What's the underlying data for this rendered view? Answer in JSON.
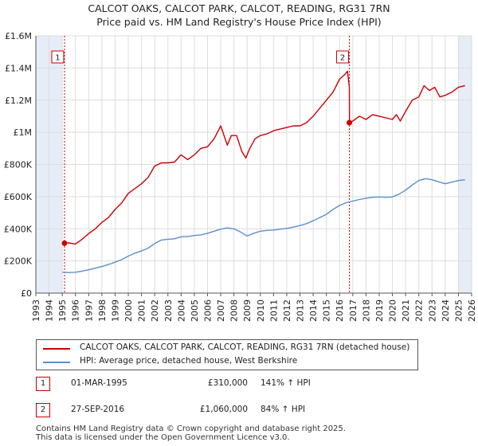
{
  "title_line1": "CALCOT OAKS, CALCOT PARK, CALCOT, READING, RG31 7RN",
  "title_line2": "Price paid vs. HM Land Registry's House Price Index (HPI)",
  "colors": {
    "property": "#cc0000",
    "hpi": "#5b8fcc",
    "grid": "#dddddd",
    "marker_line": "#cc0000",
    "shade": "#dce6f2"
  },
  "chart_data": {
    "type": "line",
    "title": "Price paid vs. HM Land Registry's House Price Index (HPI)",
    "xlabel": "",
    "ylabel": "",
    "xlim": [
      1993,
      2026
    ],
    "ylim": [
      0,
      1600000
    ],
    "y_ticks": [
      0,
      200000,
      400000,
      600000,
      800000,
      1000000,
      1200000,
      1400000,
      1600000
    ],
    "y_tick_labels": [
      "£0",
      "£200K",
      "£400K",
      "£600K",
      "£800K",
      "£1M",
      "£1.2M",
      "£1.4M",
      "£1.6M"
    ],
    "x_ticks": [
      1993,
      1994,
      1995,
      1996,
      1997,
      1998,
      1999,
      2000,
      2001,
      2002,
      2003,
      2004,
      2005,
      2006,
      2007,
      2008,
      2009,
      2010,
      2011,
      2012,
      2013,
      2014,
      2015,
      2016,
      2017,
      2018,
      2019,
      2020,
      2021,
      2022,
      2023,
      2024,
      2025,
      2026
    ],
    "x_tick_labels": [
      "1993",
      "1994",
      "1995",
      "1996",
      "1997",
      "1998",
      "1999",
      "2000",
      "2001",
      "2002",
      "2003",
      "2004",
      "2005",
      "2006",
      "2007",
      "2008",
      "2009",
      "2010",
      "2011",
      "2012",
      "2013",
      "2014",
      "2015",
      "2016",
      "2017",
      "2018",
      "2019",
      "2020",
      "2021",
      "2022",
      "2023",
      "2024",
      "2025",
      "2026"
    ],
    "shaded_ranges": [
      [
        1993,
        1995.0
      ],
      [
        2025.0,
        2026
      ]
    ],
    "series": [
      {
        "name": "CALCOT OAKS, CALCOT PARK, CALCOT, READING, RG31 7RN (detached house)",
        "x": [
          1995.17,
          1995.5,
          1996.0,
          1996.5,
          1997.0,
          1997.5,
          1998.0,
          1998.5,
          1999.0,
          1999.5,
          2000.0,
          2000.5,
          2001.0,
          2001.5,
          2002.0,
          2002.5,
          2003.0,
          2003.5,
          2004.0,
          2004.5,
          2005.0,
          2005.5,
          2006.0,
          2006.5,
          2007.0,
          2007.5,
          2007.8,
          2008.2,
          2008.6,
          2008.9,
          2009.2,
          2009.6,
          2010.0,
          2010.5,
          2011.0,
          2011.5,
          2012.0,
          2012.5,
          2013.0,
          2013.5,
          2014.0,
          2014.5,
          2015.0,
          2015.5,
          2016.0,
          2016.4,
          2016.6,
          2016.74,
          2016.75,
          2017.0,
          2017.5,
          2018.0,
          2018.5,
          2019.0,
          2019.5,
          2020.0,
          2020.3,
          2020.6,
          2021.0,
          2021.5,
          2022.0,
          2022.4,
          2022.8,
          2023.2,
          2023.6,
          2024.0,
          2024.5,
          2025.0,
          2025.5
        ],
        "values": [
          310000,
          312000,
          305000,
          335000,
          370000,
          400000,
          440000,
          470000,
          520000,
          560000,
          620000,
          650000,
          680000,
          720000,
          790000,
          810000,
          810000,
          815000,
          860000,
          830000,
          860000,
          900000,
          910000,
          960000,
          1040000,
          920000,
          980000,
          980000,
          880000,
          840000,
          900000,
          960000,
          980000,
          990000,
          1010000,
          1020000,
          1030000,
          1040000,
          1040000,
          1060000,
          1100000,
          1150000,
          1200000,
          1250000,
          1330000,
          1360000,
          1380000,
          1280000,
          1060000,
          1070000,
          1100000,
          1080000,
          1110000,
          1100000,
          1090000,
          1080000,
          1110000,
          1070000,
          1130000,
          1200000,
          1220000,
          1290000,
          1260000,
          1280000,
          1220000,
          1230000,
          1250000,
          1280000,
          1290000
        ]
      },
      {
        "name": "HPI: Average price, detached house, West Berkshire",
        "x": [
          1995.0,
          1995.5,
          1996.0,
          1996.5,
          1997.0,
          1997.5,
          1998.0,
          1998.5,
          1999.0,
          1999.5,
          2000.0,
          2000.5,
          2001.0,
          2001.5,
          2002.0,
          2002.5,
          2003.0,
          2003.5,
          2004.0,
          2004.5,
          2005.0,
          2005.5,
          2006.0,
          2006.5,
          2007.0,
          2007.5,
          2008.0,
          2008.5,
          2009.0,
          2009.5,
          2010.0,
          2010.5,
          2011.0,
          2011.5,
          2012.0,
          2012.5,
          2013.0,
          2013.5,
          2014.0,
          2014.5,
          2015.0,
          2015.5,
          2016.0,
          2016.5,
          2017.0,
          2017.5,
          2018.0,
          2018.5,
          2019.0,
          2019.5,
          2020.0,
          2020.5,
          2021.0,
          2021.5,
          2022.0,
          2022.5,
          2023.0,
          2023.5,
          2024.0,
          2024.5,
          2025.0,
          2025.5
        ],
        "values": [
          130000,
          128000,
          130000,
          136000,
          145000,
          155000,
          165000,
          178000,
          192000,
          208000,
          230000,
          248000,
          262000,
          280000,
          308000,
          330000,
          335000,
          338000,
          350000,
          352000,
          358000,
          362000,
          372000,
          385000,
          398000,
          405000,
          400000,
          380000,
          355000,
          372000,
          385000,
          390000,
          392000,
          398000,
          402000,
          410000,
          420000,
          432000,
          450000,
          470000,
          490000,
          520000,
          545000,
          562000,
          572000,
          582000,
          590000,
          596000,
          598000,
          596000,
          598000,
          615000,
          640000,
          672000,
          700000,
          712000,
          705000,
          692000,
          680000,
          690000,
          700000,
          705000
        ]
      }
    ],
    "markers": [
      {
        "label": "1",
        "x": 1995.17,
        "value": 310000
      },
      {
        "label": "2",
        "x": 2016.74,
        "value": 1060000
      }
    ]
  },
  "legend": {
    "property_label": "CALCOT OAKS, CALCOT PARK, CALCOT, READING, RG31 7RN (detached house)",
    "hpi_label": "HPI: Average price, detached house, West Berkshire"
  },
  "transactions": [
    {
      "num": "1",
      "date": "01-MAR-1995",
      "price": "£310,000",
      "hpi": "141% ↑ HPI"
    },
    {
      "num": "2",
      "date": "27-SEP-2016",
      "price": "£1,060,000",
      "hpi": "84% ↑ HPI"
    }
  ],
  "footer_line1": "Contains HM Land Registry data © Crown copyright and database right 2025.",
  "footer_line2": "This data is licensed under the Open Government Licence v3.0."
}
